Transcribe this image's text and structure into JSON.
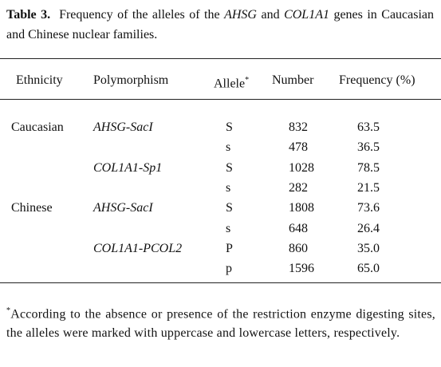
{
  "caption": {
    "label": "Table 3.",
    "segments": [
      "Frequency of the alleles of the",
      "AHSG",
      "and",
      "COL1A1",
      "genes in Caucasian and Chinese nuclear families."
    ]
  },
  "table": {
    "headers": [
      "Ethnicity",
      "Polymorphism",
      "Allele",
      "Number",
      "Frequency (%)"
    ],
    "allele_marker": "*",
    "rows": [
      [
        "Caucasian",
        "AHSG-SacI",
        "S",
        "832",
        "63.5"
      ],
      [
        null,
        null,
        "s",
        "478",
        "36.5"
      ],
      [
        null,
        "COL1A1-Sp1",
        "S",
        "1028",
        "78.5"
      ],
      [
        null,
        null,
        "s",
        "282",
        "21.5"
      ],
      [
        "Chinese",
        "AHSG-SacI",
        "S",
        "1808",
        "73.6"
      ],
      [
        null,
        null,
        "s",
        "648",
        "26.4"
      ],
      [
        null,
        "COL1A1-PCOL2",
        "P",
        "860",
        "35.0"
      ],
      [
        null,
        null,
        "p",
        "1596",
        "65.0"
      ]
    ]
  },
  "footnote": {
    "marker": "*",
    "text": "According to the absence or presence of the restriction enzyme digesting sites, the alleles were marked with uppercase and lowercase letters, respectively."
  }
}
